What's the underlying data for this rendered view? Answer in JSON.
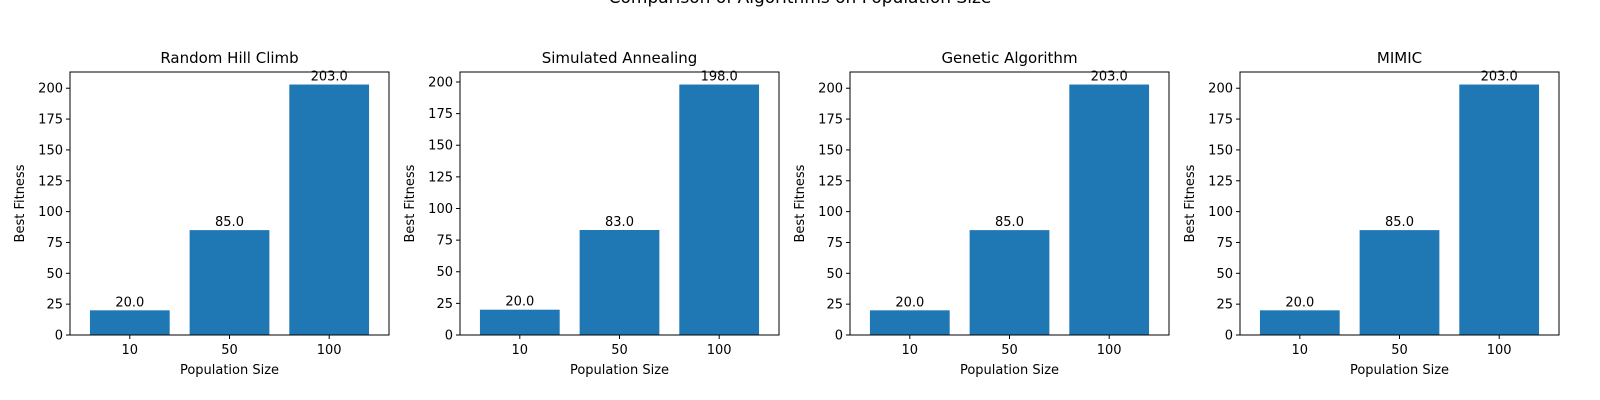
{
  "figure": {
    "title": "Comparison of Algorithms on Population Size"
  },
  "chart_data": [
    {
      "type": "bar",
      "title": "Random Hill Climb",
      "xlabel": "Population Size",
      "ylabel": "Best Fitness",
      "categories": [
        "10",
        "50",
        "100"
      ],
      "values": [
        20.0,
        85.0,
        203.0
      ],
      "data_labels": [
        "20.0",
        "85.0",
        "203.0"
      ],
      "ylim": [
        0,
        213.15
      ],
      "yticks": [
        0,
        25,
        50,
        75,
        100,
        125,
        150,
        175,
        200
      ],
      "color": "#1f77b4",
      "grid": false,
      "legend": "none"
    },
    {
      "type": "bar",
      "title": "Simulated Annealing",
      "xlabel": "Population Size",
      "ylabel": "Best Fitness",
      "categories": [
        "10",
        "50",
        "100"
      ],
      "values": [
        20.0,
        83.0,
        198.0
      ],
      "data_labels": [
        "20.0",
        "83.0",
        "198.0"
      ],
      "ylim": [
        0,
        207.9
      ],
      "yticks": [
        0,
        25,
        50,
        75,
        100,
        125,
        150,
        175,
        200
      ],
      "color": "#1f77b4",
      "grid": false,
      "legend": "none"
    },
    {
      "type": "bar",
      "title": "Genetic Algorithm",
      "xlabel": "Population Size",
      "ylabel": "Best Fitness",
      "categories": [
        "10",
        "50",
        "100"
      ],
      "values": [
        20.0,
        85.0,
        203.0
      ],
      "data_labels": [
        "20.0",
        "85.0",
        "203.0"
      ],
      "ylim": [
        0,
        213.15
      ],
      "yticks": [
        0,
        25,
        50,
        75,
        100,
        125,
        150,
        175,
        200
      ],
      "color": "#1f77b4",
      "grid": false,
      "legend": "none"
    },
    {
      "type": "bar",
      "title": "MIMIC",
      "xlabel": "Population Size",
      "ylabel": "Best Fitness",
      "categories": [
        "10",
        "50",
        "100"
      ],
      "values": [
        20.0,
        85.0,
        203.0
      ],
      "data_labels": [
        "20.0",
        "85.0",
        "203.0"
      ],
      "ylim": [
        0,
        213.15
      ],
      "yticks": [
        0,
        25,
        50,
        75,
        100,
        125,
        150,
        175,
        200
      ],
      "color": "#1f77b4",
      "grid": false,
      "legend": "none"
    }
  ]
}
